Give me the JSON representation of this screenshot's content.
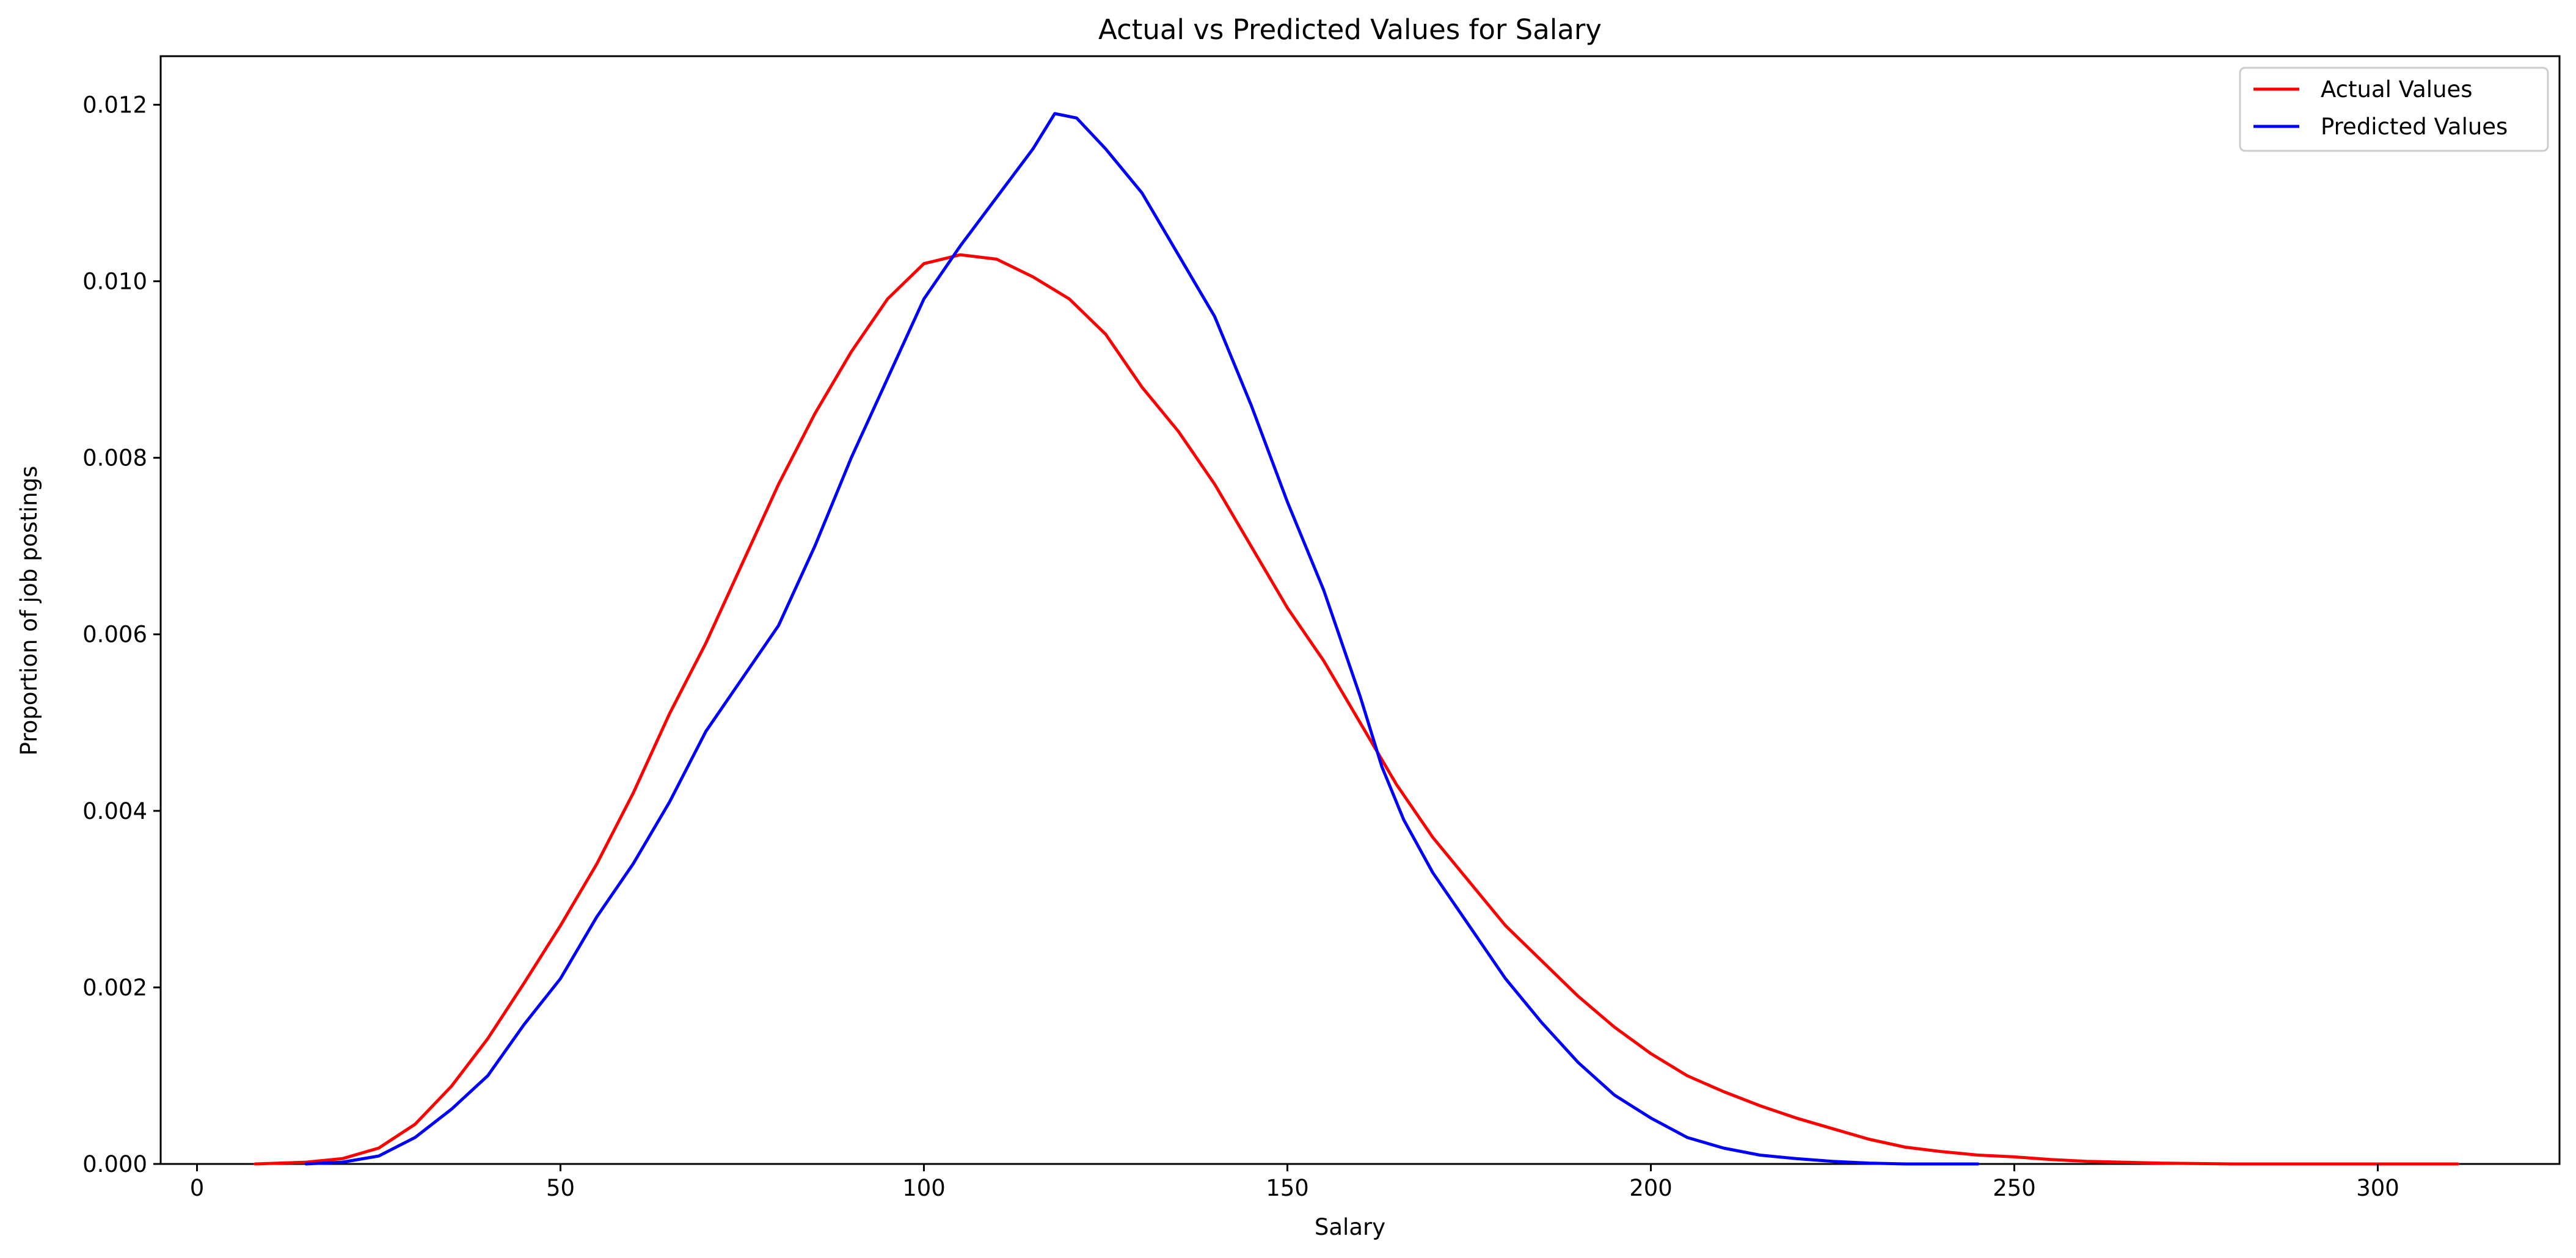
{
  "chart_data": {
    "type": "line",
    "title": "Actual vs Predicted Values for Salary",
    "xlabel": "Salary",
    "ylabel": "Proportion of job postings",
    "xlim": [
      -5,
      325
    ],
    "ylim": [
      0,
      0.01255
    ],
    "xticks": [
      0,
      50,
      100,
      150,
      200,
      250,
      300
    ],
    "yticks": [
      0.0,
      0.002,
      0.004,
      0.006,
      0.008,
      0.01,
      0.012
    ],
    "ytick_labels": [
      "0.000",
      "0.002",
      "0.004",
      "0.006",
      "0.008",
      "0.010",
      "0.012"
    ],
    "grid": false,
    "legend_position": "top-right",
    "series": [
      {
        "name": "Actual Values",
        "color": "#ff0000",
        "points": [
          [
            8,
            0.0
          ],
          [
            15,
            2e-05
          ],
          [
            20,
            6e-05
          ],
          [
            25,
            0.00018
          ],
          [
            30,
            0.00045
          ],
          [
            35,
            0.00088
          ],
          [
            40,
            0.00142
          ],
          [
            45,
            0.00205
          ],
          [
            50,
            0.0027
          ],
          [
            55,
            0.0034
          ],
          [
            60,
            0.0042
          ],
          [
            65,
            0.0051
          ],
          [
            70,
            0.0059
          ],
          [
            75,
            0.0068
          ],
          [
            80,
            0.0077
          ],
          [
            85,
            0.0085
          ],
          [
            90,
            0.0092
          ],
          [
            95,
            0.0098
          ],
          [
            100,
            0.0102
          ],
          [
            105,
            0.0103
          ],
          [
            110,
            0.01025
          ],
          [
            115,
            0.01005
          ],
          [
            120,
            0.0098
          ],
          [
            125,
            0.0094
          ],
          [
            130,
            0.0088
          ],
          [
            135,
            0.0083
          ],
          [
            140,
            0.0077
          ],
          [
            145,
            0.007
          ],
          [
            150,
            0.0063
          ],
          [
            155,
            0.0057
          ],
          [
            160,
            0.005
          ],
          [
            165,
            0.0043
          ],
          [
            170,
            0.0037
          ],
          [
            175,
            0.0032
          ],
          [
            180,
            0.0027
          ],
          [
            185,
            0.0023
          ],
          [
            190,
            0.0019
          ],
          [
            195,
            0.00155
          ],
          [
            200,
            0.00125
          ],
          [
            205,
            0.001
          ],
          [
            210,
            0.00082
          ],
          [
            215,
            0.00066
          ],
          [
            220,
            0.00052
          ],
          [
            225,
            0.0004
          ],
          [
            230,
            0.00028
          ],
          [
            235,
            0.00019
          ],
          [
            240,
            0.00014
          ],
          [
            245,
            0.0001
          ],
          [
            250,
            8e-05
          ],
          [
            255,
            5e-05
          ],
          [
            260,
            3e-05
          ],
          [
            270,
            1e-05
          ],
          [
            280,
            0.0
          ],
          [
            311,
            0.0
          ]
        ]
      },
      {
        "name": "Predicted Values",
        "color": "#0000ff",
        "points": [
          [
            15,
            0.0
          ],
          [
            20,
            2e-05
          ],
          [
            25,
            9e-05
          ],
          [
            30,
            0.0003
          ],
          [
            35,
            0.00062
          ],
          [
            40,
            0.001
          ],
          [
            45,
            0.00158
          ],
          [
            50,
            0.0021
          ],
          [
            55,
            0.0028
          ],
          [
            60,
            0.0034
          ],
          [
            65,
            0.0041
          ],
          [
            70,
            0.0049
          ],
          [
            75,
            0.0055
          ],
          [
            80,
            0.0061
          ],
          [
            85,
            0.007
          ],
          [
            90,
            0.008
          ],
          [
            95,
            0.0089
          ],
          [
            100,
            0.0098
          ],
          [
            105,
            0.0104
          ],
          [
            110,
            0.01095
          ],
          [
            115,
            0.0115
          ],
          [
            118,
            0.0119
          ],
          [
            121,
            0.01185
          ],
          [
            125,
            0.0115
          ],
          [
            130,
            0.011
          ],
          [
            135,
            0.0103
          ],
          [
            140,
            0.0096
          ],
          [
            145,
            0.0086
          ],
          [
            150,
            0.0075
          ],
          [
            155,
            0.0065
          ],
          [
            160,
            0.0053
          ],
          [
            163,
            0.0045
          ],
          [
            166,
            0.0039
          ],
          [
            170,
            0.0033
          ],
          [
            175,
            0.0027
          ],
          [
            180,
            0.0021
          ],
          [
            185,
            0.0016
          ],
          [
            190,
            0.00115
          ],
          [
            195,
            0.00078
          ],
          [
            200,
            0.00052
          ],
          [
            205,
            0.0003
          ],
          [
            210,
            0.00018
          ],
          [
            215,
            0.0001
          ],
          [
            220,
            6e-05
          ],
          [
            225,
            3e-05
          ],
          [
            230,
            1e-05
          ],
          [
            235,
            0.0
          ],
          [
            245,
            0.0
          ]
        ]
      }
    ]
  }
}
